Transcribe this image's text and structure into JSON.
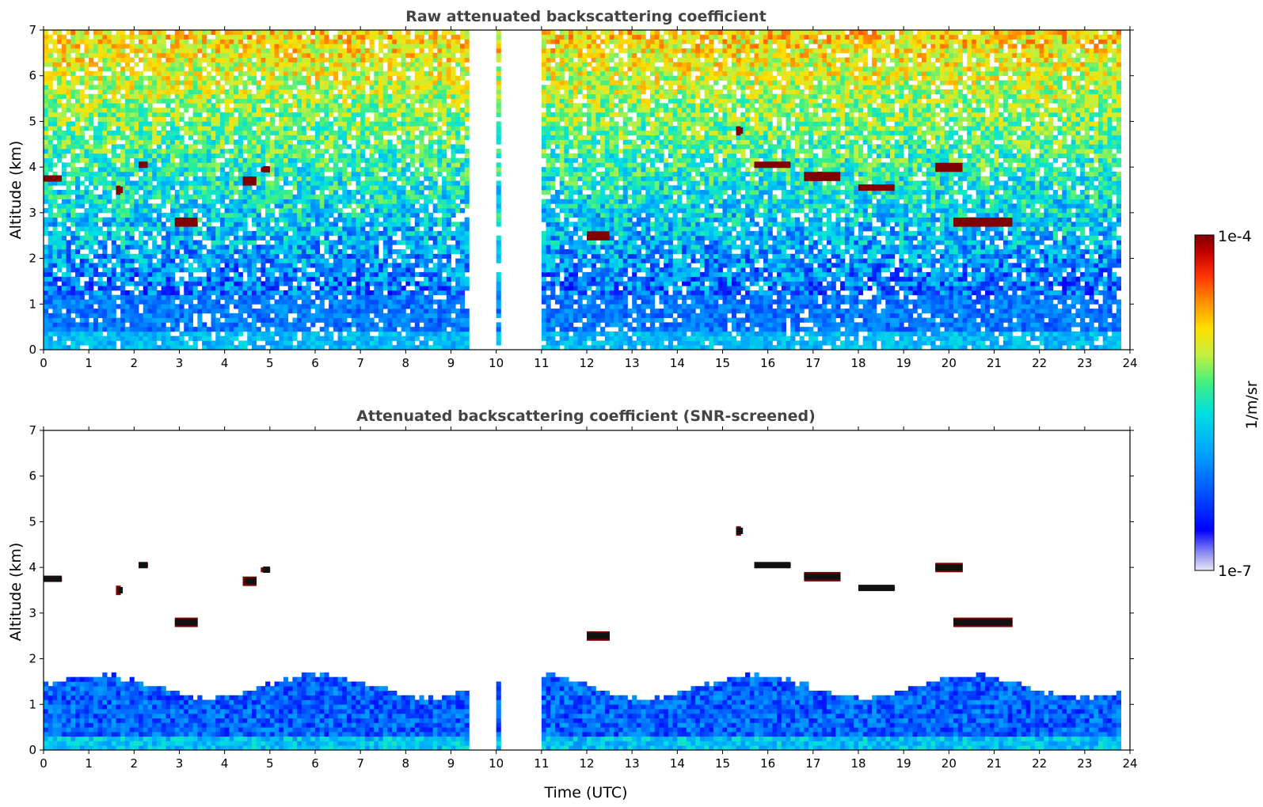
{
  "chart_data": [
    {
      "type": "heatmap",
      "title": "Raw attenuated backscattering coefficient",
      "xlabel": "",
      "ylabel": "Altitude (km)",
      "xlim": [
        0,
        24
      ],
      "ylim": [
        0,
        7
      ],
      "xticks": [
        0,
        1,
        2,
        3,
        4,
        5,
        6,
        7,
        8,
        9,
        10,
        11,
        12,
        13,
        14,
        15,
        16,
        17,
        18,
        19,
        20,
        21,
        22,
        23,
        24
      ],
      "yticks": [
        0,
        1,
        2,
        3,
        4,
        5,
        6,
        7
      ],
      "data_gaps_utc": [
        [
          9.4,
          10.05
        ],
        [
          10.15,
          11.05
        ]
      ],
      "data_end_utc": 23.8,
      "features": [
        {
          "kind": "boundary-layer",
          "t0": 0,
          "t1": 23.8,
          "z0": 0,
          "z1": 1.2
        },
        {
          "kind": "cloud",
          "t0": 0.0,
          "t1": 0.4,
          "z": 3.75
        },
        {
          "kind": "cloud",
          "t0": 1.65,
          "t1": 1.75,
          "z": 3.5
        },
        {
          "kind": "cloud",
          "t0": 2.1,
          "t1": 2.3,
          "z": 4.05
        },
        {
          "kind": "cloud",
          "t0": 2.9,
          "t1": 3.4,
          "z": 2.8
        },
        {
          "kind": "cloud",
          "t0": 4.45,
          "t1": 4.7,
          "z": 3.7
        },
        {
          "kind": "cloud",
          "t0": 4.85,
          "t1": 5.0,
          "z": 3.95
        },
        {
          "kind": "cloud",
          "t0": 12.0,
          "t1": 12.5,
          "z": 2.5
        },
        {
          "kind": "cloud",
          "t0": 15.3,
          "t1": 15.45,
          "z": 4.8
        },
        {
          "kind": "cloud",
          "t0": 15.7,
          "t1": 16.5,
          "z": 4.05
        },
        {
          "kind": "cloud",
          "t0": 16.8,
          "t1": 17.6,
          "z": 3.8
        },
        {
          "kind": "cloud",
          "t0": 18.0,
          "t1": 18.8,
          "z": 3.55
        },
        {
          "kind": "cloud",
          "t0": 19.7,
          "t1": 20.3,
          "z": 4.0
        },
        {
          "kind": "cloud",
          "t0": 20.1,
          "t1": 21.4,
          "z": 2.8
        }
      ]
    },
    {
      "type": "heatmap",
      "title": "Attenuated backscattering coefficient (SNR-screened)",
      "xlabel": "Time (UTC)",
      "ylabel": "Altitude (km)",
      "xlim": [
        0,
        24
      ],
      "ylim": [
        0,
        7
      ],
      "xticks": [
        0,
        1,
        2,
        3,
        4,
        5,
        6,
        7,
        8,
        9,
        10,
        11,
        12,
        13,
        14,
        15,
        16,
        17,
        18,
        19,
        20,
        21,
        22,
        23,
        24
      ],
      "yticks": [
        0,
        1,
        2,
        3,
        4,
        5,
        6,
        7
      ],
      "data_gaps_utc": [
        [
          9.4,
          10.05
        ],
        [
          10.15,
          11.05
        ]
      ],
      "data_end_utc": 23.8
    }
  ],
  "colorbar": {
    "label": "1/m/sr",
    "max_label": "1e-4",
    "min_label": "1e-7",
    "scale": "log",
    "range": [
      1e-07,
      0.0001
    ],
    "colormap": [
      "#e8e8f8",
      "#9090f0",
      "#0000ff",
      "#0060ff",
      "#00a8ff",
      "#00e0e0",
      "#40f080",
      "#c0f040",
      "#ffe000",
      "#ff9000",
      "#ff3000",
      "#c00000",
      "#800000"
    ]
  }
}
